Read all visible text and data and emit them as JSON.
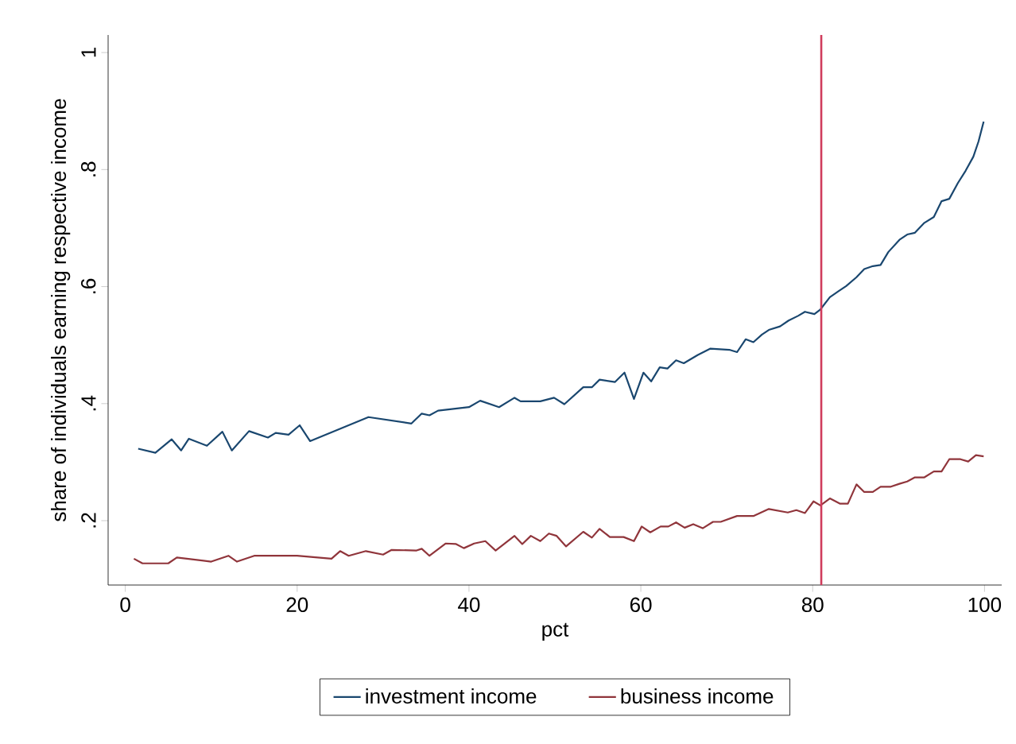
{
  "chart_data": {
    "type": "line",
    "xlabel": "pct",
    "ylabel": "share of individuals earning respective income",
    "xlim": [
      -2,
      102
    ],
    "ylim": [
      0.09,
      1.03
    ],
    "xticks": [
      0,
      20,
      40,
      60,
      80,
      100
    ],
    "yticks": [
      {
        "value": 0.2,
        "label": ".2"
      },
      {
        "value": 0.4,
        "label": ".4"
      },
      {
        "value": 0.6,
        "label": ".6"
      },
      {
        "value": 0.8,
        "label": ".8"
      },
      {
        "value": 1,
        "label": "1"
      }
    ],
    "grid": false,
    "legend": "bottom",
    "marker": "none",
    "line_style": "solid",
    "ref_lines": [
      {
        "axis": "x",
        "value": 81,
        "color": "#d03c5c"
      }
    ],
    "series": [
      {
        "name": "investment income",
        "color": "#1a476f",
        "x": [
          1.5,
          3.5,
          5.4,
          6.5,
          7.4,
          9.5,
          11.3,
          12.4,
          14.4,
          16.6,
          17.5,
          19,
          20.3,
          21.5,
          28.3,
          33.3,
          34.5,
          35.4,
          36.4,
          40,
          41.3,
          43.5,
          45.3,
          46,
          48.3,
          49.9,
          51.1,
          53.3,
          54.3,
          55.2,
          57,
          58.1,
          59.2,
          60.3,
          61.2,
          62.2,
          63.1,
          64.1,
          65,
          66.6,
          68.1,
          70.3,
          71.2,
          72.2,
          73.1,
          74.1,
          74.9,
          76.2,
          77.2,
          78.3,
          79.1,
          80.2,
          80.9,
          82,
          83,
          83.9,
          85.1,
          86,
          87,
          87.9,
          88.8,
          90.1,
          91,
          91.9,
          93,
          94.1,
          95,
          95.9,
          96.9,
          97.8,
          98.7,
          99.3,
          99.9
        ],
        "values": [
          0.323,
          0.316,
          0.339,
          0.32,
          0.34,
          0.328,
          0.352,
          0.32,
          0.353,
          0.342,
          0.35,
          0.347,
          0.363,
          0.336,
          0.377,
          0.366,
          0.383,
          0.38,
          0.388,
          0.394,
          0.405,
          0.394,
          0.41,
          0.404,
          0.404,
          0.41,
          0.399,
          0.428,
          0.428,
          0.441,
          0.437,
          0.453,
          0.408,
          0.453,
          0.438,
          0.462,
          0.46,
          0.474,
          0.469,
          0.483,
          0.494,
          0.492,
          0.488,
          0.51,
          0.505,
          0.518,
          0.526,
          0.532,
          0.542,
          0.55,
          0.557,
          0.553,
          0.561,
          0.582,
          0.592,
          0.601,
          0.616,
          0.63,
          0.635,
          0.637,
          0.659,
          0.68,
          0.689,
          0.692,
          0.709,
          0.719,
          0.746,
          0.75,
          0.777,
          0.798,
          0.822,
          0.848,
          0.882
        ]
      },
      {
        "name": "business income",
        "color": "#90353b",
        "x": [
          1,
          2,
          5,
          6,
          10,
          12,
          13,
          15,
          20,
          24,
          25,
          26,
          28,
          30,
          31,
          33.9,
          34.5,
          35.4,
          37.3,
          38.5,
          39.4,
          40.6,
          41.9,
          43.1,
          45.3,
          46.2,
          47.2,
          48.3,
          49.3,
          50.2,
          51.3,
          53.3,
          54.3,
          55.2,
          56.4,
          58,
          59.2,
          60.1,
          61.1,
          62.3,
          63.2,
          64.1,
          65.1,
          66.1,
          67.2,
          68.4,
          69.3,
          71.2,
          73.1,
          74.9,
          77.1,
          78.1,
          79.1,
          80.1,
          80.9,
          82,
          83.2,
          84.1,
          85.1,
          86,
          87,
          87.9,
          89.1,
          90.1,
          91,
          91.9,
          93,
          94.1,
          95,
          95.9,
          97.2,
          98.1,
          99,
          99.9
        ],
        "values": [
          0.135,
          0.127,
          0.127,
          0.137,
          0.13,
          0.14,
          0.13,
          0.14,
          0.14,
          0.135,
          0.148,
          0.14,
          0.148,
          0.142,
          0.15,
          0.149,
          0.152,
          0.14,
          0.161,
          0.16,
          0.153,
          0.161,
          0.165,
          0.149,
          0.174,
          0.16,
          0.174,
          0.165,
          0.178,
          0.174,
          0.156,
          0.181,
          0.171,
          0.186,
          0.172,
          0.172,
          0.165,
          0.19,
          0.18,
          0.19,
          0.19,
          0.197,
          0.188,
          0.194,
          0.187,
          0.198,
          0.198,
          0.208,
          0.208,
          0.22,
          0.214,
          0.218,
          0.213,
          0.233,
          0.226,
          0.238,
          0.229,
          0.229,
          0.262,
          0.249,
          0.249,
          0.258,
          0.258,
          0.263,
          0.267,
          0.274,
          0.274,
          0.284,
          0.284,
          0.305,
          0.305,
          0.301,
          0.312,
          0.31
        ]
      }
    ]
  }
}
